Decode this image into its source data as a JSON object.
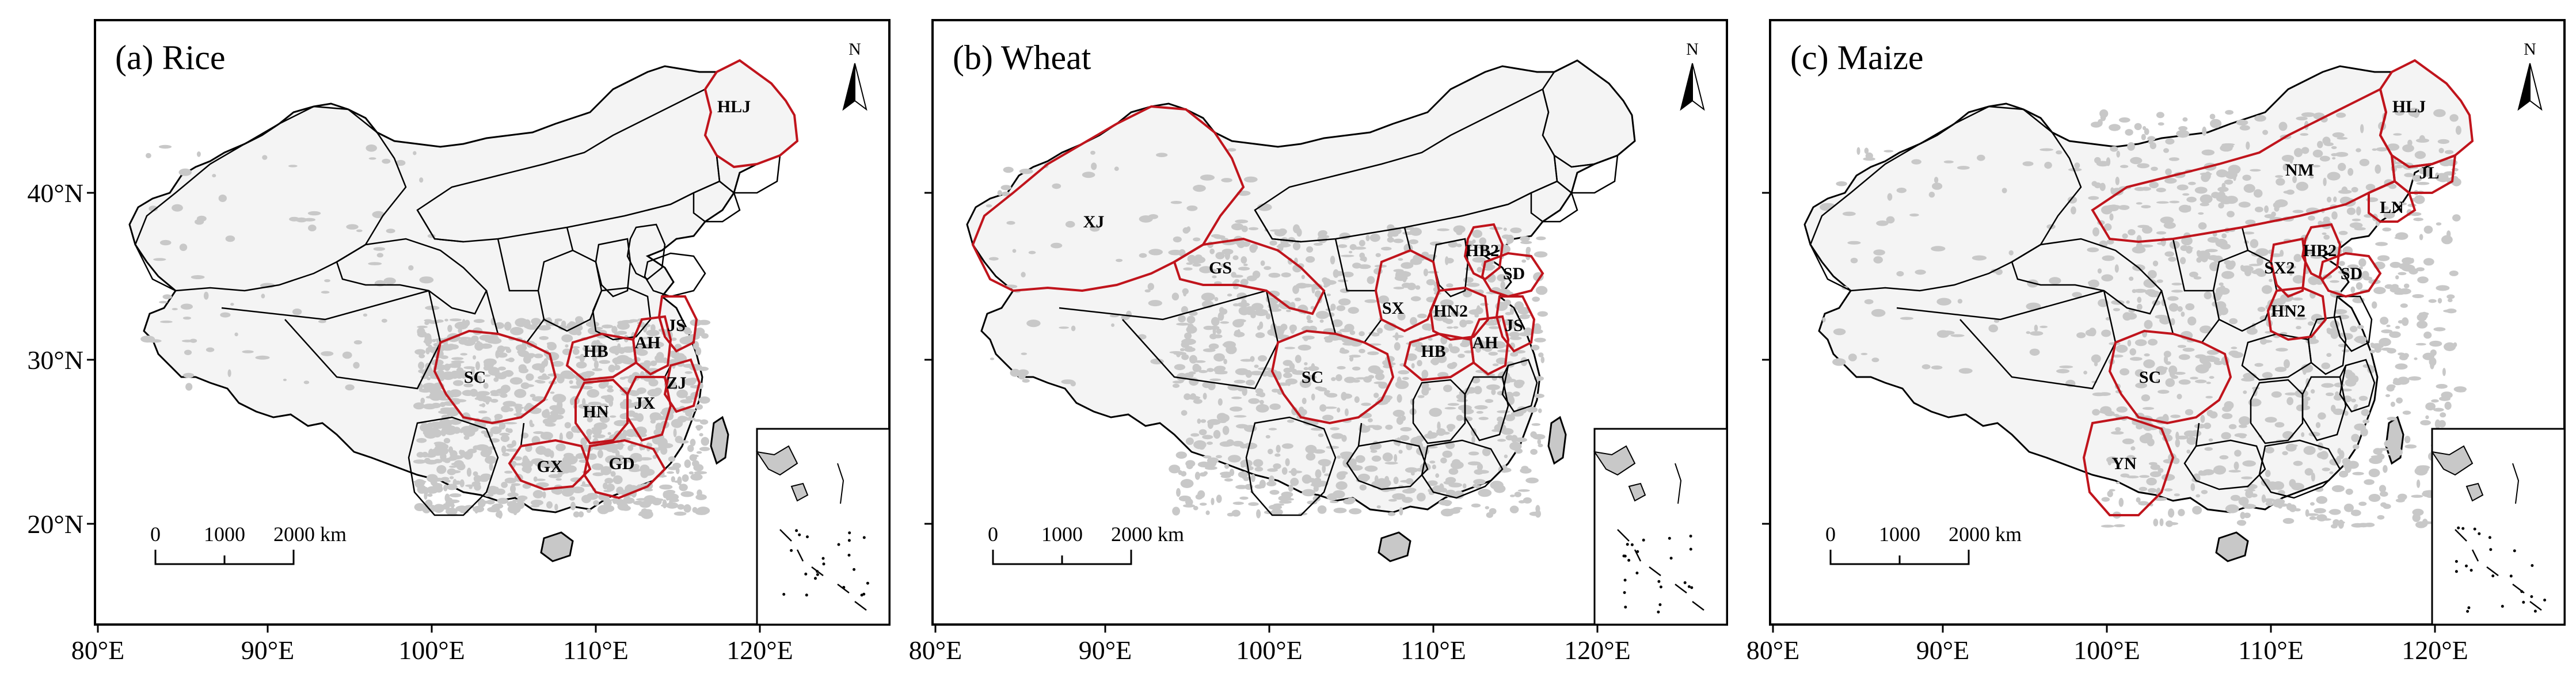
{
  "panels": [
    {
      "id": "rice",
      "title": "(a) Rice",
      "red_provinces": [
        "SC",
        "HB",
        "AH",
        "JS",
        "ZJ",
        "HN",
        "JX",
        "GX",
        "GD",
        "HLJ"
      ],
      "labels": [
        "HLJ",
        "SC",
        "HB",
        "AH",
        "JS",
        "ZJ",
        "HN",
        "JX",
        "GX",
        "GD"
      ]
    },
    {
      "id": "wheat",
      "title": "(b) Wheat",
      "red_provinces": [
        "XJ",
        "GS",
        "SX",
        "HN2",
        "HB2",
        "SD",
        "JS",
        "AH",
        "HB",
        "SC"
      ],
      "labels": [
        "XJ",
        "GS",
        "HB2",
        "SD",
        "SX",
        "HN2",
        "JS",
        "HB",
        "AH",
        "SC"
      ]
    },
    {
      "id": "maize",
      "title": "(c) Maize",
      "red_provinces": [
        "HLJ",
        "JL",
        "LN",
        "NM",
        "HB2",
        "SX2",
        "SD",
        "HN2",
        "SC",
        "YN"
      ],
      "labels": [
        "HLJ",
        "JL",
        "NM",
        "LN",
        "HB2",
        "SX2",
        "SD",
        "HN2",
        "SC",
        "YN"
      ]
    }
  ],
  "axes": {
    "y_ticks": [
      "40°N",
      "30°N",
      "20°N"
    ],
    "x_ticks": [
      [
        "80°E",
        "90°E",
        "100°E",
        "110°E",
        "120°E"
      ],
      [
        "80°E",
        "90°E",
        "100°E",
        "110°E",
        "120°E"
      ],
      [
        "80°E",
        "90°E",
        "100°E",
        "110°E",
        "120°E"
      ]
    ]
  },
  "scale_bar": {
    "labels": [
      "0",
      "1000",
      "2000 km"
    ]
  },
  "north_arrow": {
    "label": "N"
  },
  "colors": {
    "crop_area": "#c8c8c8",
    "highlight_border": "#c0141c",
    "border": "#000000",
    "background": "#ffffff"
  }
}
